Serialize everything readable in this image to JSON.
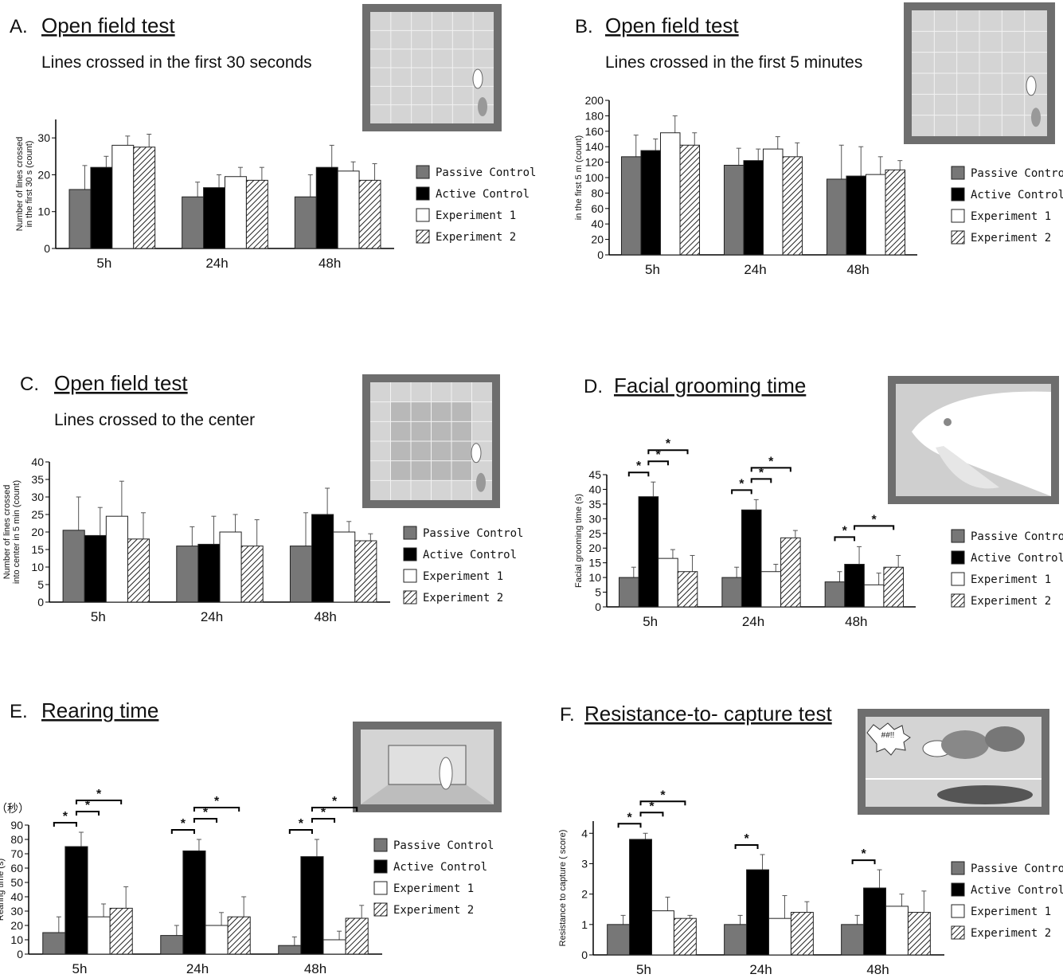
{
  "chart_data": [
    {
      "type": "bar",
      "panel": "A.",
      "title": "Open field test",
      "subtitle": "Lines crossed in the first 30 seconds",
      "ylabel": [
        "Number of lines crossed",
        "in the first 30 s (count)"
      ],
      "categories": [
        "5h",
        "24h",
        "48h"
      ],
      "ylim": [
        0,
        35
      ],
      "yticks": [
        0,
        10,
        20,
        30
      ],
      "series": [
        {
          "name": "Passive Control",
          "color": "#777777",
          "values": [
            16,
            14,
            14
          ],
          "errors": [
            6.5,
            4,
            6
          ]
        },
        {
          "name": "Active Control",
          "color": "#000000",
          "values": [
            22,
            16.5,
            22
          ],
          "errors": [
            3,
            3.5,
            6
          ]
        },
        {
          "name": "Experiment 1",
          "color": "#ffffff",
          "values": [
            28,
            19.5,
            21
          ],
          "errors": [
            2.5,
            2.5,
            2.5
          ]
        },
        {
          "name": "Experiment 2",
          "color": "#ffffff",
          "pattern": "hatch",
          "values": [
            27.5,
            18.5,
            18.5
          ],
          "errors": [
            3.5,
            3.5,
            4.5
          ]
        }
      ],
      "comparisons": []
    },
    {
      "type": "bar",
      "panel": "B.",
      "title": "Open field test",
      "subtitle": "Lines crossed in the first 5 minutes",
      "ylabel": [
        "in the first 5 m (count)"
      ],
      "categories": [
        "5h",
        "24h",
        "48h"
      ],
      "ylim": [
        0,
        200
      ],
      "yticks": [
        0,
        20,
        40,
        60,
        80,
        100,
        120,
        140,
        160,
        180,
        200
      ],
      "series": [
        {
          "name": "Passive Control",
          "color": "#777777",
          "values": [
            127,
            116,
            98
          ],
          "errors": [
            28,
            22,
            44
          ]
        },
        {
          "name": "Active Control",
          "color": "#000000",
          "values": [
            135,
            122,
            102
          ],
          "errors": [
            15,
            15,
            38
          ]
        },
        {
          "name": "Experiment 1",
          "color": "#ffffff",
          "values": [
            158,
            137,
            104
          ],
          "errors": [
            22,
            16,
            23
          ]
        },
        {
          "name": "Experiment 2",
          "color": "#ffffff",
          "pattern": "hatch",
          "values": [
            142,
            127,
            110
          ],
          "errors": [
            16,
            18,
            12
          ]
        }
      ],
      "comparisons": []
    },
    {
      "type": "bar",
      "panel": "C.",
      "title": "Open field test",
      "subtitle": "Lines crossed to the center",
      "ylabel": [
        "Number of lines crossed",
        "into center in 5 min (count)"
      ],
      "categories": [
        "5h",
        "24h",
        "48h"
      ],
      "ylim": [
        0,
        40
      ],
      "yticks": [
        0,
        5,
        10,
        15,
        20,
        25,
        30,
        35,
        40
      ],
      "series": [
        {
          "name": "Passive Control",
          "color": "#777777",
          "values": [
            20.5,
            16,
            16
          ],
          "errors": [
            9.5,
            5.5,
            9.5
          ]
        },
        {
          "name": "Active Control",
          "color": "#000000",
          "values": [
            19,
            16.5,
            25
          ],
          "errors": [
            8,
            8,
            7.5
          ]
        },
        {
          "name": "Experiment 1",
          "color": "#ffffff",
          "values": [
            24.5,
            20,
            20
          ],
          "errors": [
            10,
            5,
            3
          ]
        },
        {
          "name": "Experiment 2",
          "color": "#ffffff",
          "pattern": "hatch",
          "values": [
            18,
            16,
            17.5
          ],
          "errors": [
            7.5,
            7.5,
            2
          ]
        }
      ],
      "comparisons": []
    },
    {
      "type": "bar",
      "panel": "D.",
      "title": "Facial grooming time",
      "ylabel": [
        "Facial grooming time (s)"
      ],
      "categories": [
        "5h",
        "24h",
        "48h"
      ],
      "ylim": [
        0,
        45
      ],
      "yticks": [
        0,
        5,
        10,
        15,
        20,
        25,
        30,
        35,
        40,
        45
      ],
      "series": [
        {
          "name": "Passive Control",
          "color": "#777777",
          "values": [
            10,
            10,
            8.5
          ],
          "errors": [
            3.5,
            3.5,
            3.5
          ]
        },
        {
          "name": "Active Control",
          "color": "#000000",
          "values": [
            37.5,
            33,
            14.5
          ],
          "errors": [
            5,
            3.5,
            6
          ]
        },
        {
          "name": "Experiment 1",
          "color": "#ffffff",
          "values": [
            16.5,
            12,
            7.5
          ],
          "errors": [
            3,
            2.5,
            4
          ]
        },
        {
          "name": "Experiment 2",
          "color": "#ffffff",
          "pattern": "hatch",
          "values": [
            12,
            23.5,
            13.5
          ],
          "errors": [
            5.5,
            2.5,
            4
          ]
        }
      ],
      "comparisons": [
        {
          "label": "*",
          "category": 0,
          "between": [
            0,
            1
          ]
        },
        {
          "label": "*",
          "category": 0,
          "between": [
            1,
            2
          ]
        },
        {
          "label": "*",
          "category": 0,
          "between": [
            1,
            3
          ]
        },
        {
          "label": "*",
          "category": 1,
          "between": [
            0,
            1
          ]
        },
        {
          "label": "*",
          "category": 1,
          "between": [
            1,
            2
          ]
        },
        {
          "label": "*",
          "category": 1,
          "between": [
            1,
            3
          ]
        },
        {
          "label": "*",
          "category": 2,
          "between": [
            0,
            1
          ]
        },
        {
          "label": "*",
          "category": 2,
          "between": [
            1,
            3
          ]
        }
      ]
    },
    {
      "type": "bar",
      "panel": "E.",
      "title": "Rearing time",
      "unit_note": "（秒）",
      "ylabel": [
        "Rearing time (s)"
      ],
      "categories": [
        "5h",
        "24h",
        "48h"
      ],
      "ylim": [
        0,
        90
      ],
      "yticks": [
        0,
        10,
        20,
        30,
        40,
        50,
        60,
        70,
        80,
        90
      ],
      "series": [
        {
          "name": "Passive Control",
          "color": "#777777",
          "values": [
            15,
            13,
            6
          ],
          "errors": [
            11,
            7,
            6
          ]
        },
        {
          "name": "Active Control",
          "color": "#000000",
          "values": [
            75,
            72,
            68
          ],
          "errors": [
            10,
            8,
            12
          ]
        },
        {
          "name": "Experiment 1",
          "color": "#ffffff",
          "values": [
            26,
            20,
            10
          ],
          "errors": [
            9,
            9,
            6
          ]
        },
        {
          "name": "Experiment 2",
          "color": "#ffffff",
          "pattern": "hatch",
          "values": [
            32,
            26,
            25
          ],
          "errors": [
            15,
            14,
            9
          ]
        }
      ],
      "comparisons": [
        {
          "label": "*",
          "category": 0,
          "between": [
            0,
            1
          ]
        },
        {
          "label": "*",
          "category": 0,
          "between": [
            1,
            2
          ]
        },
        {
          "label": "*",
          "category": 0,
          "between": [
            1,
            3
          ]
        },
        {
          "label": "*",
          "category": 1,
          "between": [
            0,
            1
          ]
        },
        {
          "label": "*",
          "category": 1,
          "between": [
            1,
            2
          ]
        },
        {
          "label": "*",
          "category": 1,
          "between": [
            1,
            3
          ]
        },
        {
          "label": "*",
          "category": 2,
          "between": [
            0,
            1
          ]
        },
        {
          "label": "*",
          "category": 2,
          "between": [
            1,
            2
          ]
        },
        {
          "label": "*",
          "category": 2,
          "between": [
            1,
            3
          ]
        }
      ]
    },
    {
      "type": "bar",
      "panel": "F.",
      "title": "Resistance-to- capture test",
      "illustration_text": "##!!",
      "ylabel": [
        "Resistance to capture ( score)"
      ],
      "categories": [
        "5h",
        "24h",
        "48h"
      ],
      "ylim": [
        0,
        4.4
      ],
      "yticks": [
        0,
        1,
        2,
        3,
        4
      ],
      "series": [
        {
          "name": "Passive Control",
          "color": "#777777",
          "values": [
            1,
            1,
            1
          ],
          "errors": [
            0.3,
            0.3,
            0.3
          ]
        },
        {
          "name": "Active Control",
          "color": "#000000",
          "values": [
            3.8,
            2.8,
            2.2
          ],
          "errors": [
            0.2,
            0.5,
            0.6
          ]
        },
        {
          "name": "Experiment 1",
          "color": "#ffffff",
          "values": [
            1.45,
            1.2,
            1.6
          ],
          "errors": [
            0.45,
            0.75,
            0.4
          ]
        },
        {
          "name": "Experiment 2",
          "color": "#ffffff",
          "pattern": "hatch",
          "values": [
            1.2,
            1.4,
            1.4
          ],
          "errors": [
            0.1,
            0.35,
            0.7
          ]
        }
      ],
      "comparisons": [
        {
          "label": "*",
          "category": 0,
          "between": [
            0,
            1
          ]
        },
        {
          "label": "*",
          "category": 0,
          "between": [
            1,
            2
          ]
        },
        {
          "label": "*",
          "category": 0,
          "between": [
            1,
            3
          ]
        },
        {
          "label": "*",
          "category": 1,
          "between": [
            0,
            1
          ]
        },
        {
          "label": "*",
          "category": 2,
          "between": [
            0,
            1
          ]
        }
      ]
    }
  ]
}
